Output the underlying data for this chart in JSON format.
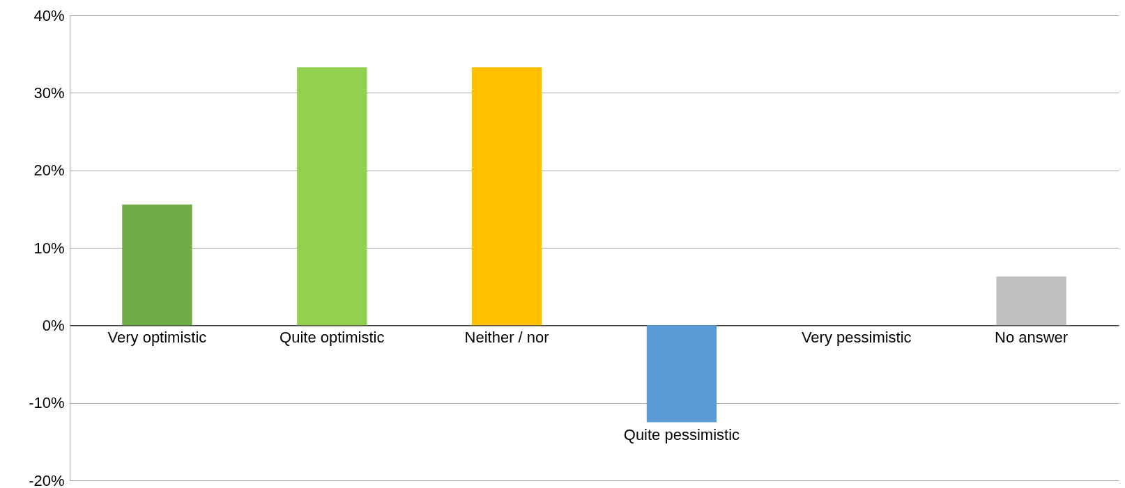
{
  "chart_data": {
    "type": "bar",
    "categories": [
      "Very optimistic",
      "Quite optimistic",
      "Neither / nor",
      "Quite pessimistic",
      "Very pessimistic",
      "No answer"
    ],
    "values": [
      15.6,
      33.3,
      33.3,
      -12.5,
      0,
      6.3
    ],
    "colors": [
      "#70ad47",
      "#92d050",
      "#ffc000",
      "#5b9bd5",
      "#ed7d31",
      "#bfbfbf"
    ],
    "ylim": [
      -20,
      40
    ],
    "yticks": [
      {
        "value": -20,
        "label": "-20%"
      },
      {
        "value": -10,
        "label": "-10%"
      },
      {
        "value": 0,
        "label": "0%"
      },
      {
        "value": 10,
        "label": "10%"
      },
      {
        "value": 20,
        "label": "20%"
      },
      {
        "value": 30,
        "label": "30%"
      },
      {
        "value": 40,
        "label": "40%"
      }
    ],
    "grid": "y"
  }
}
